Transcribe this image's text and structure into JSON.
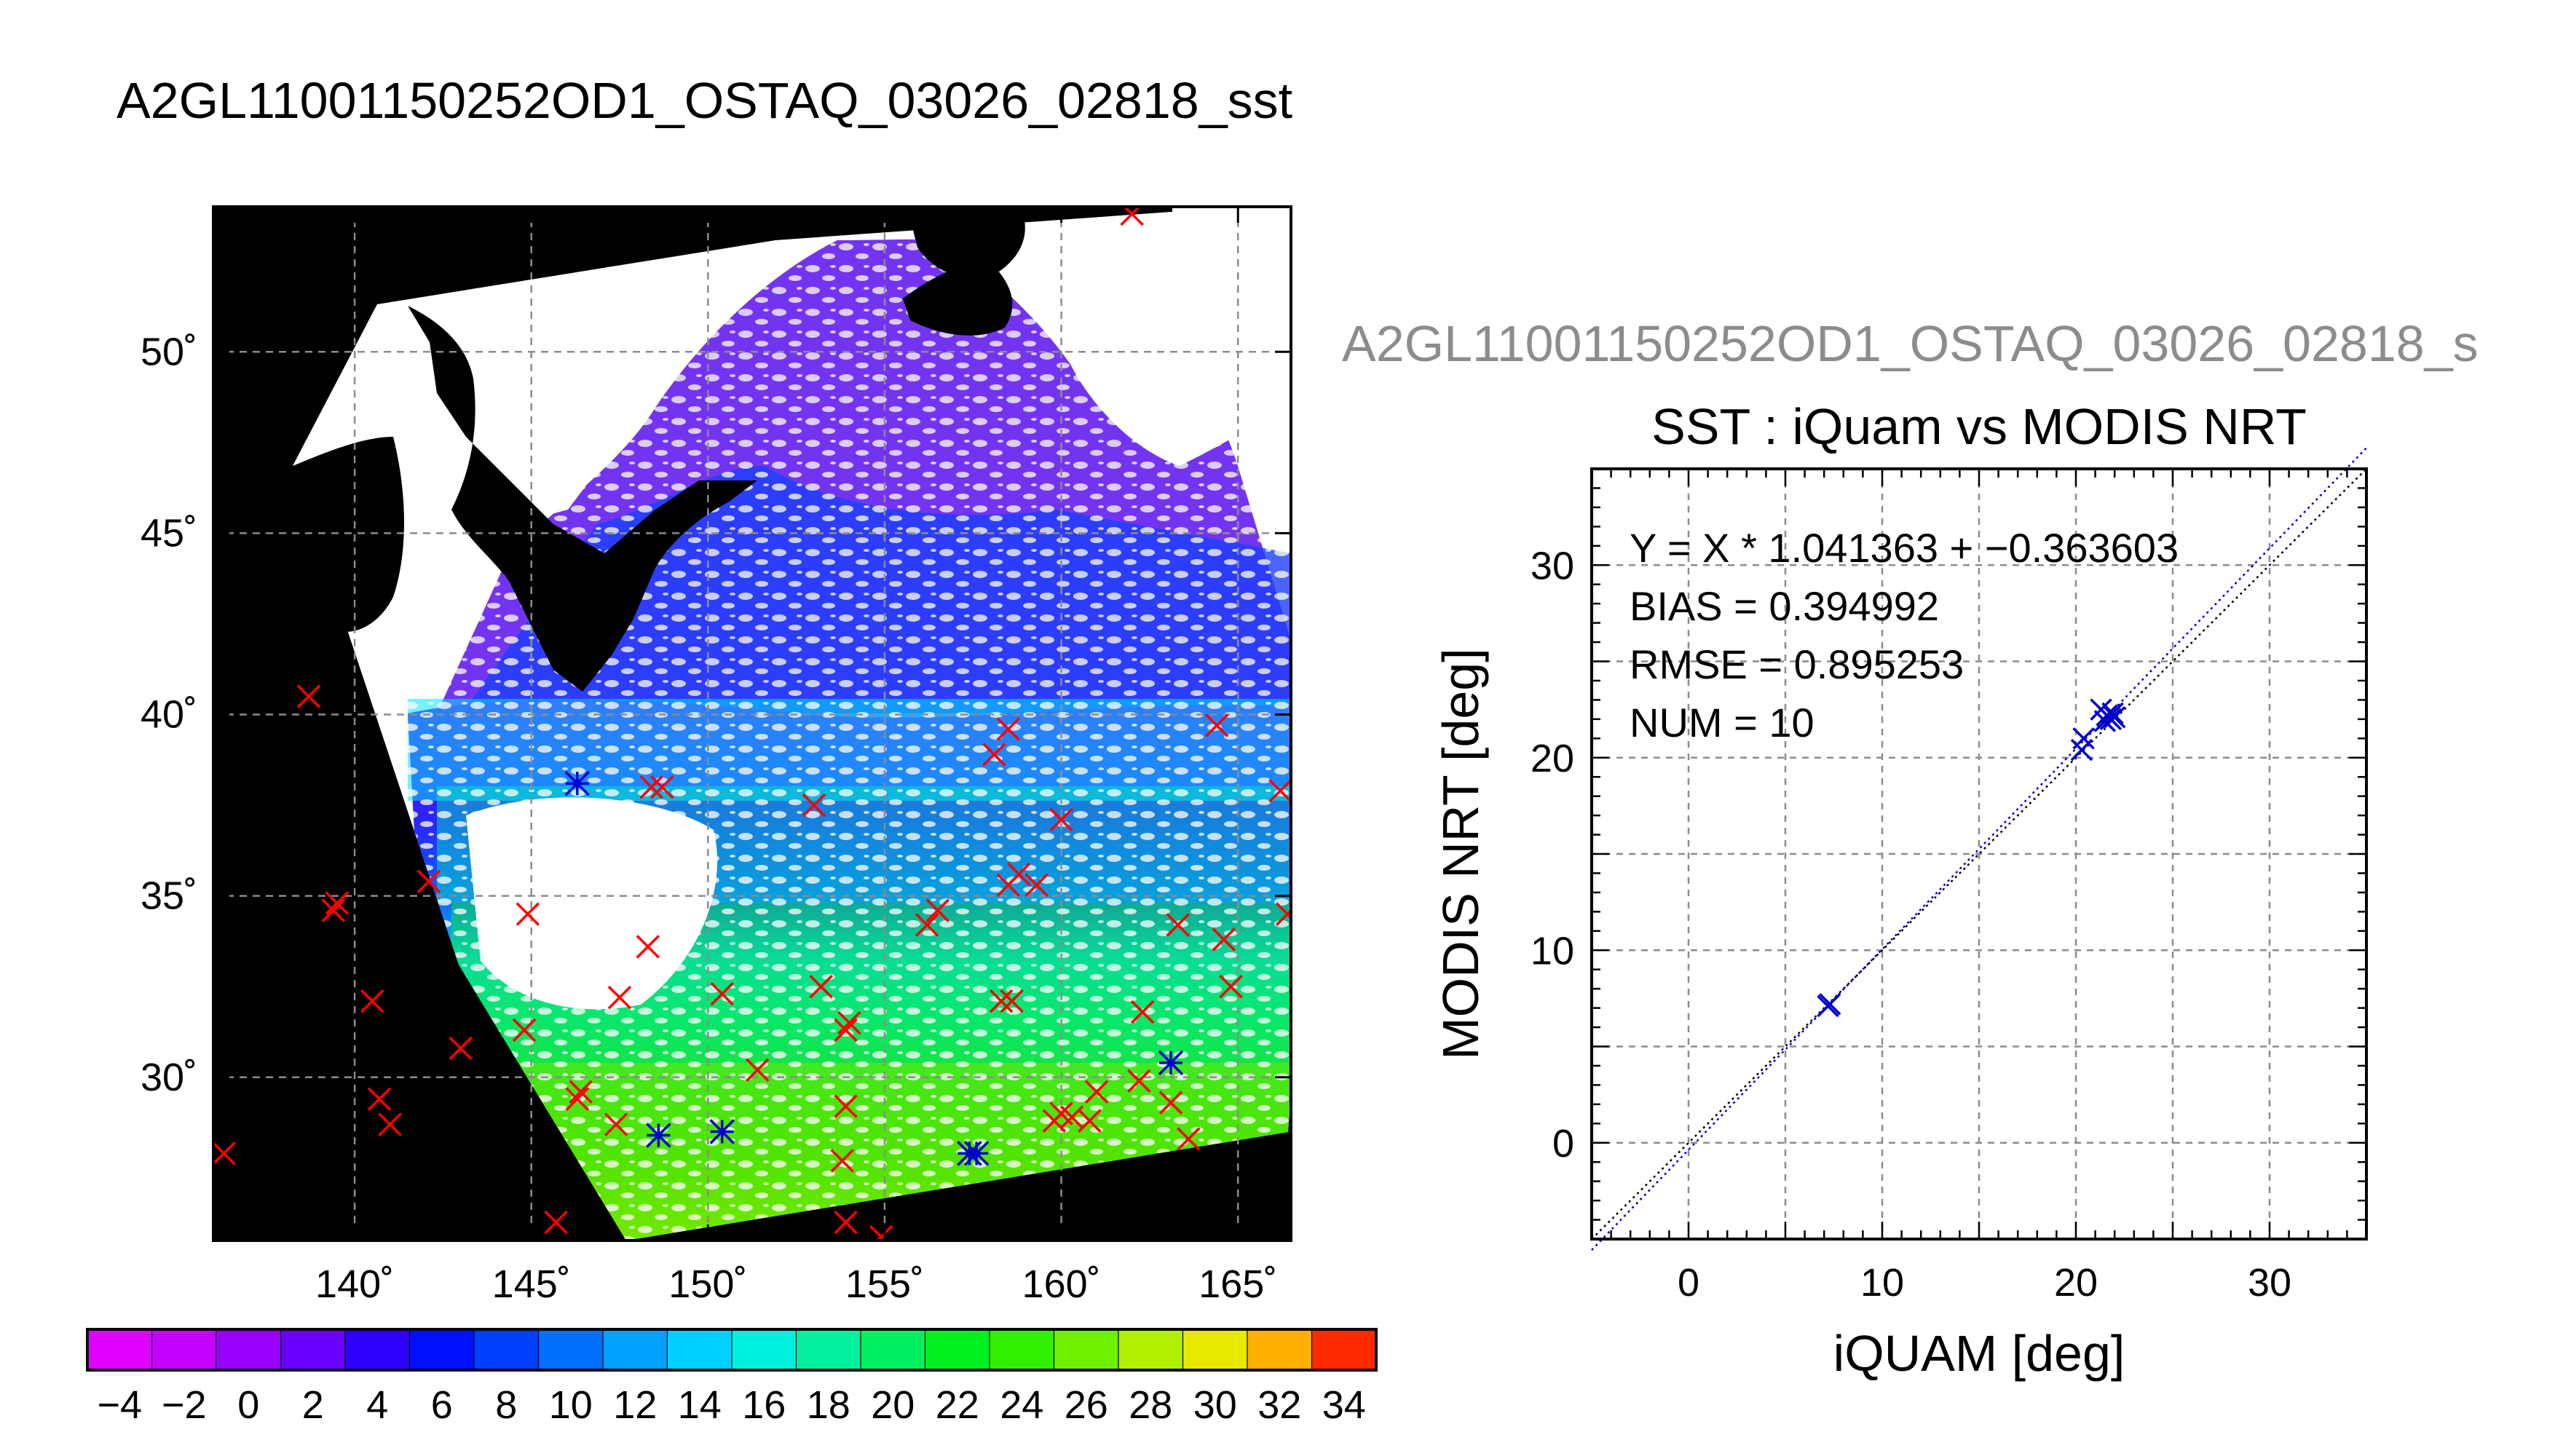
{
  "page_title": "A2GL11001150252OD1_OSTAQ_03026_02818_sst",
  "map": {
    "lon_ticks": [
      "140˚",
      "145˚",
      "150˚",
      "155˚",
      "160˚",
      "165˚"
    ],
    "lat_ticks": [
      "30˚",
      "35˚",
      "40˚",
      "45˚",
      "50˚"
    ],
    "lon_range": [
      136,
      166.5
    ],
    "lat_range": [
      25.5,
      54
    ],
    "colors": {
      "land": "#000000",
      "no_data": "#ffffff",
      "grid": "#8c8c8c",
      "in_situ_marker": "#ff0000",
      "matched_marker": "#0000cc"
    },
    "in_situ_points": [
      [
        138.7,
        40.5
      ],
      [
        139.4,
        34.6
      ],
      [
        139.5,
        34.8
      ],
      [
        142.1,
        35.4
      ],
      [
        140.5,
        32.1
      ],
      [
        143.0,
        30.8
      ],
      [
        144.8,
        31.3
      ],
      [
        144.9,
        34.5
      ],
      [
        140.7,
        29.4
      ],
      [
        141.0,
        28.7
      ],
      [
        146.4,
        29.6
      ],
      [
        146.3,
        29.4
      ],
      [
        147.4,
        28.7
      ],
      [
        147.5,
        32.2
      ],
      [
        148.3,
        33.6
      ],
      [
        150.4,
        32.3
      ],
      [
        151.4,
        30.2
      ],
      [
        153.2,
        32.5
      ],
      [
        154.0,
        31.5
      ],
      [
        153.9,
        31.3
      ],
      [
        153.9,
        29.2
      ],
      [
        153.8,
        27.7
      ],
      [
        153.9,
        26.0
      ],
      [
        154.9,
        25.6
      ],
      [
        145.7,
        26.0
      ],
      [
        136.3,
        27.9
      ],
      [
        148.4,
        38.0
      ],
      [
        148.7,
        38.0
      ],
      [
        153.0,
        37.5
      ],
      [
        156.5,
        34.6
      ],
      [
        156.2,
        34.2
      ],
      [
        158.1,
        38.9
      ],
      [
        158.5,
        39.6
      ],
      [
        158.5,
        35.3
      ],
      [
        158.8,
        35.6
      ],
      [
        159.3,
        35.3
      ],
      [
        160.0,
        37.1
      ],
      [
        158.3,
        32.1
      ],
      [
        158.6,
        32.1
      ],
      [
        160.0,
        29.0
      ],
      [
        159.8,
        28.8
      ],
      [
        160.3,
        28.9
      ],
      [
        161.0,
        29.6
      ],
      [
        160.8,
        28.8
      ],
      [
        162.3,
        31.8
      ],
      [
        162.2,
        29.9
      ],
      [
        163.1,
        29.3
      ],
      [
        163.6,
        28.3
      ],
      [
        163.3,
        34.2
      ],
      [
        164.6,
        33.8
      ],
      [
        164.8,
        32.5
      ],
      [
        166.4,
        34.5
      ],
      [
        166.2,
        37.9
      ],
      [
        164.4,
        39.7
      ],
      [
        162.0,
        53.8
      ]
    ],
    "matched_points": [
      [
        146.3,
        38.1
      ],
      [
        148.6,
        28.4
      ],
      [
        150.4,
        28.5
      ],
      [
        157.4,
        27.9
      ],
      [
        157.6,
        27.9
      ],
      [
        163.1,
        30.4
      ]
    ]
  },
  "colorbar": {
    "tick_labels": [
      "−4",
      "−2",
      "0",
      "2",
      "4",
      "6",
      "8",
      "10",
      "12",
      "14",
      "16",
      "18",
      "20",
      "22",
      "24",
      "26",
      "28",
      "30",
      "32",
      "34"
    ],
    "range": [
      -5,
      35
    ]
  },
  "scatter": {
    "header": "A2GL11001150252OD1_OSTAQ_03026_02818_s",
    "stats": [
      "Y = X * 1.041363 + −0.363603",
      "BIAS = 0.394992",
      "RMSE = 0.895253",
      "NUM = 10"
    ]
  },
  "chart_data": {
    "type": "scatter",
    "title": "SST : iQuam vs MODIS NRT",
    "xlabel": "iQUAM [deg]",
    "ylabel": "MODIS NRT [deg]",
    "xlim": [
      -5,
      35
    ],
    "ylim": [
      -5,
      35
    ],
    "xticks": [
      0,
      10,
      20,
      30
    ],
    "yticks": [
      0,
      10,
      20,
      30
    ],
    "grid": true,
    "points": [
      {
        "x": 7.2,
        "y": 7.1
      },
      {
        "x": 7.3,
        "y": 7.2
      },
      {
        "x": 20.3,
        "y": 20.4
      },
      {
        "x": 20.4,
        "y": 21.0
      },
      {
        "x": 21.3,
        "y": 22.5
      },
      {
        "x": 21.6,
        "y": 22.2
      },
      {
        "x": 21.8,
        "y": 22.0
      },
      {
        "x": 21.9,
        "y": 22.3
      },
      {
        "x": 21.5,
        "y": 21.9
      },
      {
        "x": 22.0,
        "y": 22.1
      }
    ],
    "fit": {
      "slope": 1.041363,
      "intercept": -0.363603
    },
    "marker_color": "#0000cc"
  }
}
